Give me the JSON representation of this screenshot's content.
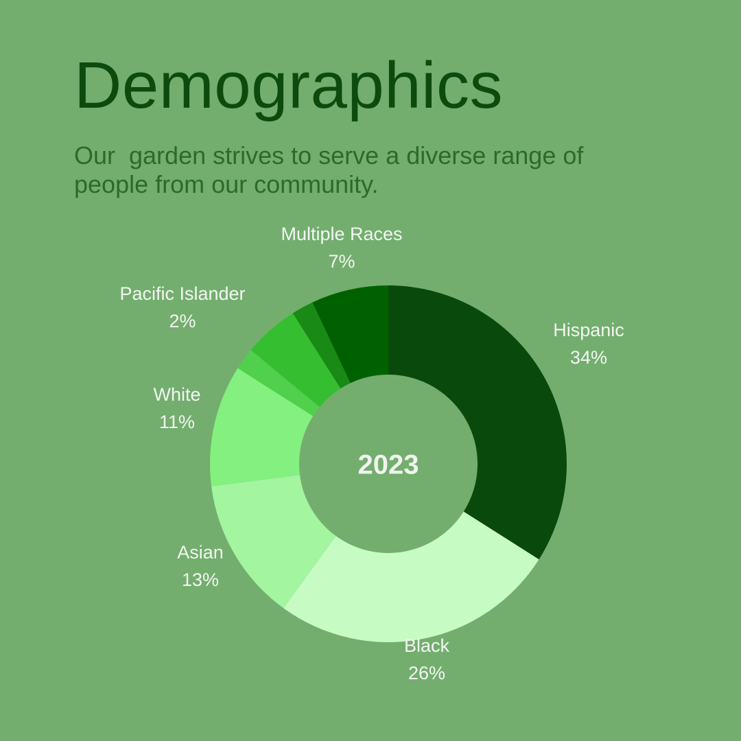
{
  "page": {
    "title": "Demographics",
    "subtitle": "Our  garden strives to serve a diverse range of people from our community."
  },
  "chart_data": {
    "type": "pie",
    "center_label": "2023",
    "categories": [
      "Hispanic",
      "Black",
      "Asian",
      "White",
      "",
      "",
      "Pacific Islander",
      "Multiple Races"
    ],
    "values": [
      34,
      26,
      13,
      11,
      2,
      5,
      2,
      7
    ],
    "value_labels": [
      "34%",
      "26%",
      "13%",
      "11%",
      "",
      "",
      "2%",
      "7%"
    ],
    "colors": [
      "#0a490c",
      "#c6fcc4",
      "#a3f5a0",
      "#84f07f",
      "#50d04d",
      "#36be31",
      "#198a16",
      "#006100"
    ]
  }
}
